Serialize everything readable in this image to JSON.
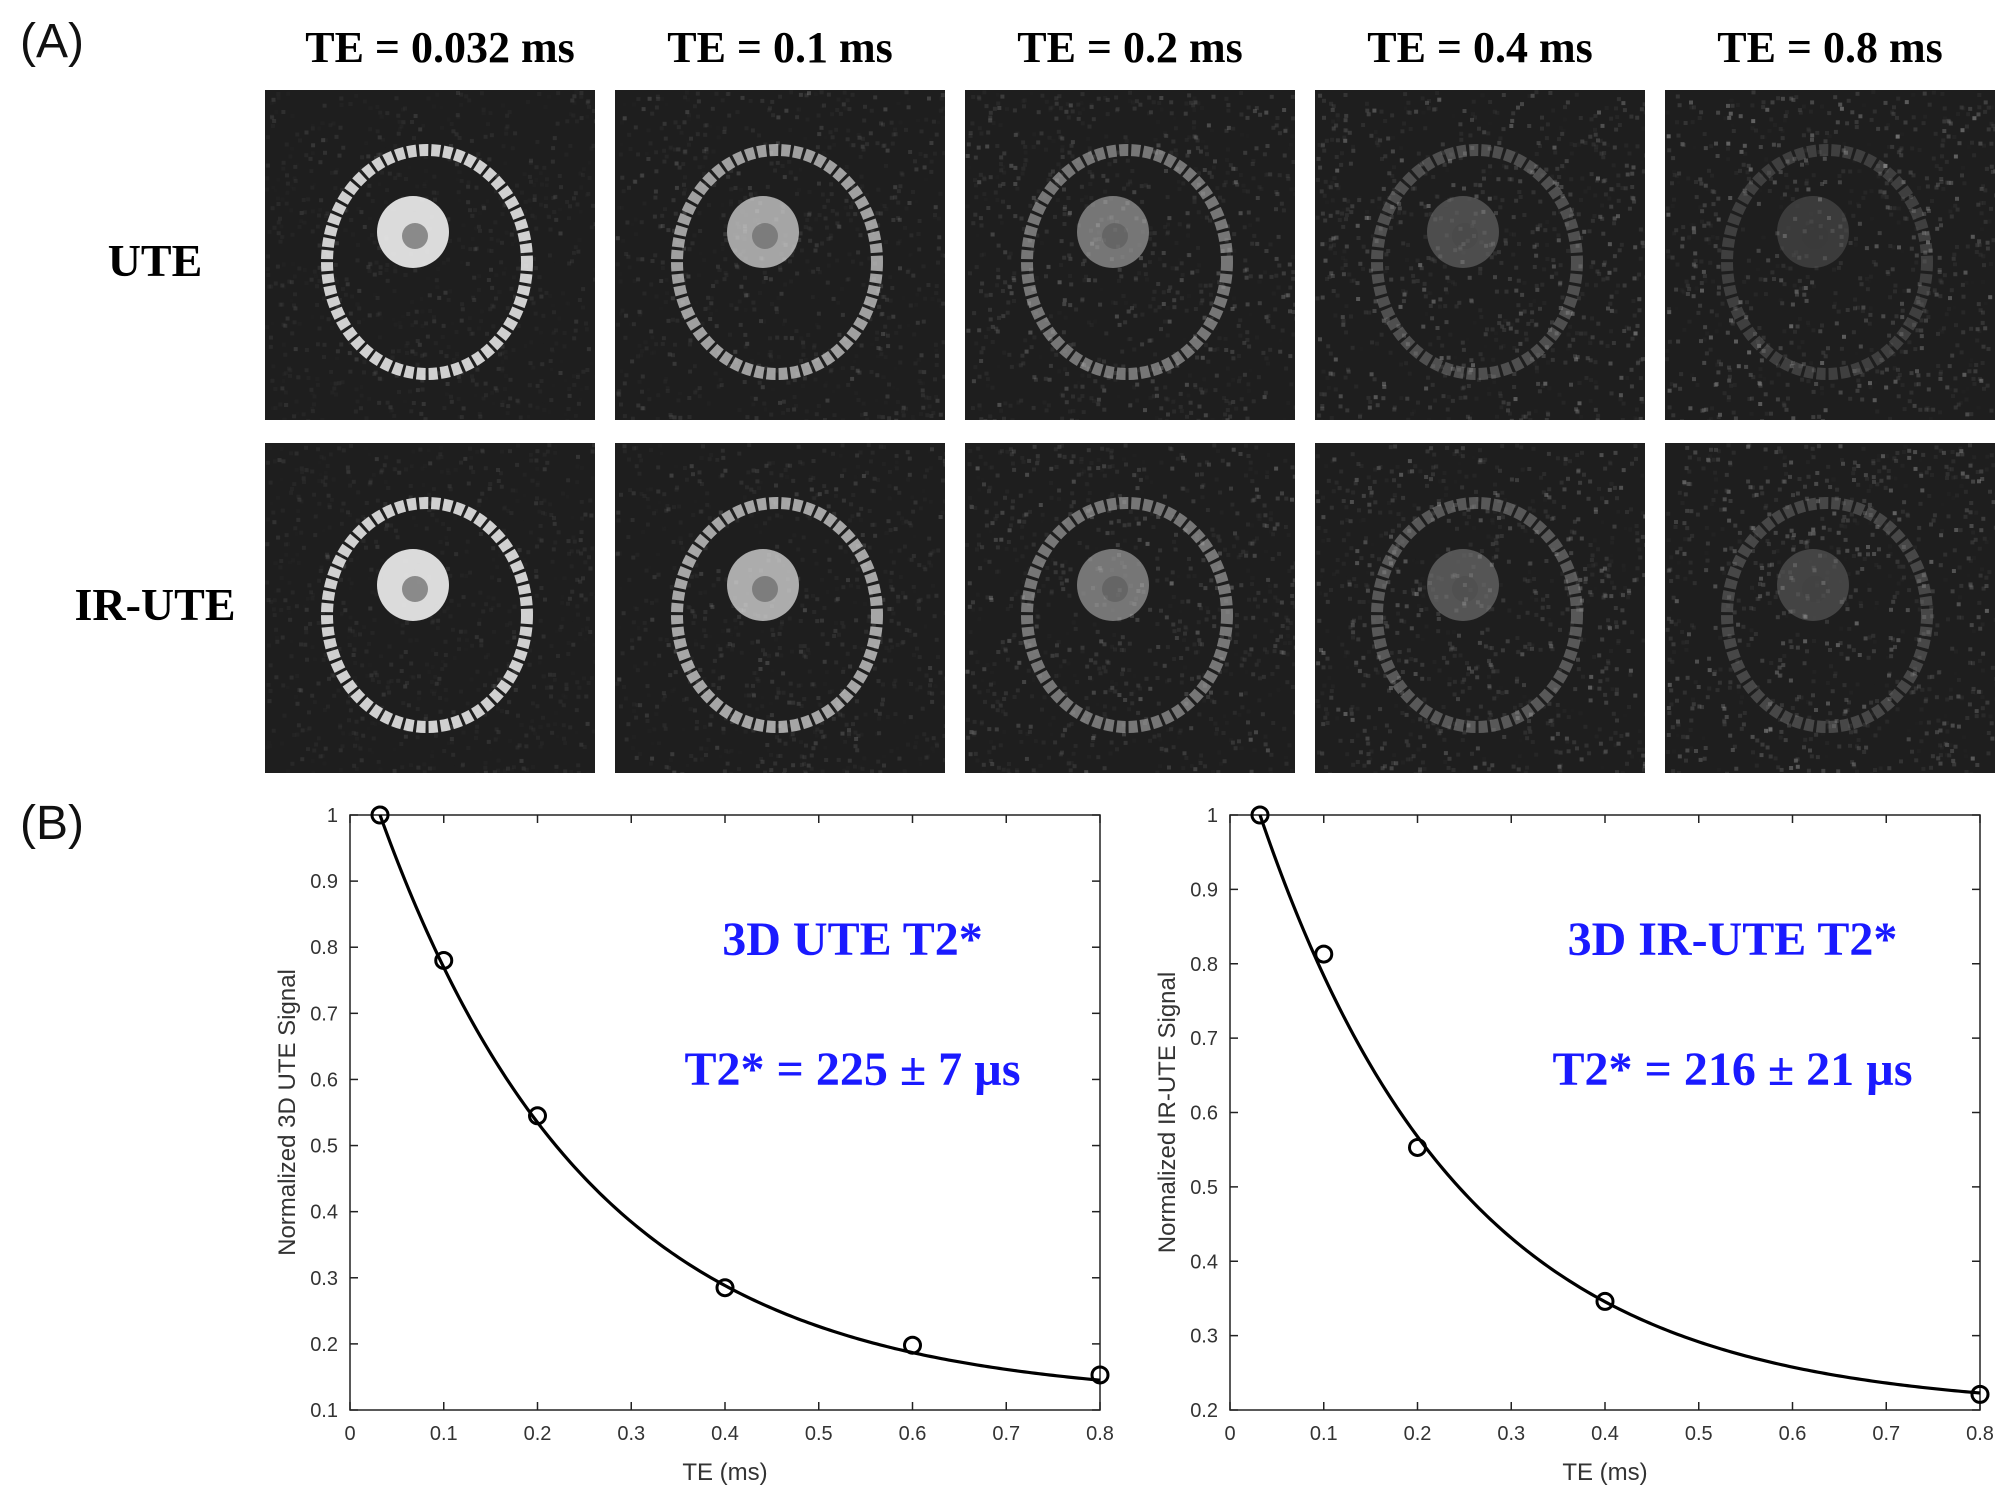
{
  "panels": {
    "a_label": "(A)",
    "b_label": "(B)"
  },
  "mri_grid": {
    "columns": [
      "TE = 0.032 ms",
      "TE = 0.1 ms",
      "TE = 0.2 ms",
      "TE = 0.4 ms",
      "TE = 0.8 ms"
    ],
    "rows": [
      "UTE",
      "IR-UTE"
    ],
    "signal_level": [
      [
        1.0,
        0.78,
        0.55,
        0.29,
        0.15
      ],
      [
        1.0,
        0.81,
        0.55,
        0.35,
        0.22
      ]
    ]
  },
  "chart_data": [
    {
      "type": "scatter",
      "title": "",
      "xlabel": "TE (ms)",
      "ylabel": "Normalized 3D UTE Signal",
      "xlim": [
        0,
        0.8
      ],
      "ylim": [
        0.1,
        1.0
      ],
      "xticks": [
        0,
        0.1,
        0.2,
        0.3,
        0.4,
        0.5,
        0.6,
        0.7,
        0.8
      ],
      "yticks": [
        0.1,
        0.2,
        0.3,
        0.4,
        0.5,
        0.6,
        0.7,
        0.8,
        0.9,
        1
      ],
      "points": {
        "x": [
          0.032,
          0.1,
          0.2,
          0.4,
          0.6,
          0.8
        ],
        "y": [
          1.0,
          0.78,
          0.545,
          0.285,
          0.198,
          0.153
        ]
      },
      "fit": {
        "model": "mono-exponential with offset",
        "t2star_ms": 0.225,
        "offset": 0.116
      },
      "annotations": [
        "3D UTE T2*",
        "T2* = 225 ± 7 µs"
      ],
      "annotation_color": "#1a1aff",
      "grid": false
    },
    {
      "type": "scatter",
      "title": "",
      "xlabel": "TE (ms)",
      "ylabel": "Normalized IR-UTE Signal",
      "xlim": [
        0,
        0.8
      ],
      "ylim": [
        0.2,
        1.0
      ],
      "xticks": [
        0,
        0.1,
        0.2,
        0.3,
        0.4,
        0.5,
        0.6,
        0.7,
        0.8
      ],
      "yticks": [
        0.2,
        0.3,
        0.4,
        0.5,
        0.6,
        0.7,
        0.8,
        0.9,
        1
      ],
      "points": {
        "x": [
          0.032,
          0.1,
          0.2,
          0.4,
          0.8
        ],
        "y": [
          1.0,
          0.813,
          0.553,
          0.346,
          0.221
        ]
      },
      "fit": {
        "model": "mono-exponential with offset",
        "t2star_ms": 0.216,
        "offset": 0.2
      },
      "annotations": [
        "3D IR-UTE T2*",
        "T2* = 216 ± 21 µs"
      ],
      "annotation_color": "#1a1aff",
      "grid": false
    }
  ]
}
